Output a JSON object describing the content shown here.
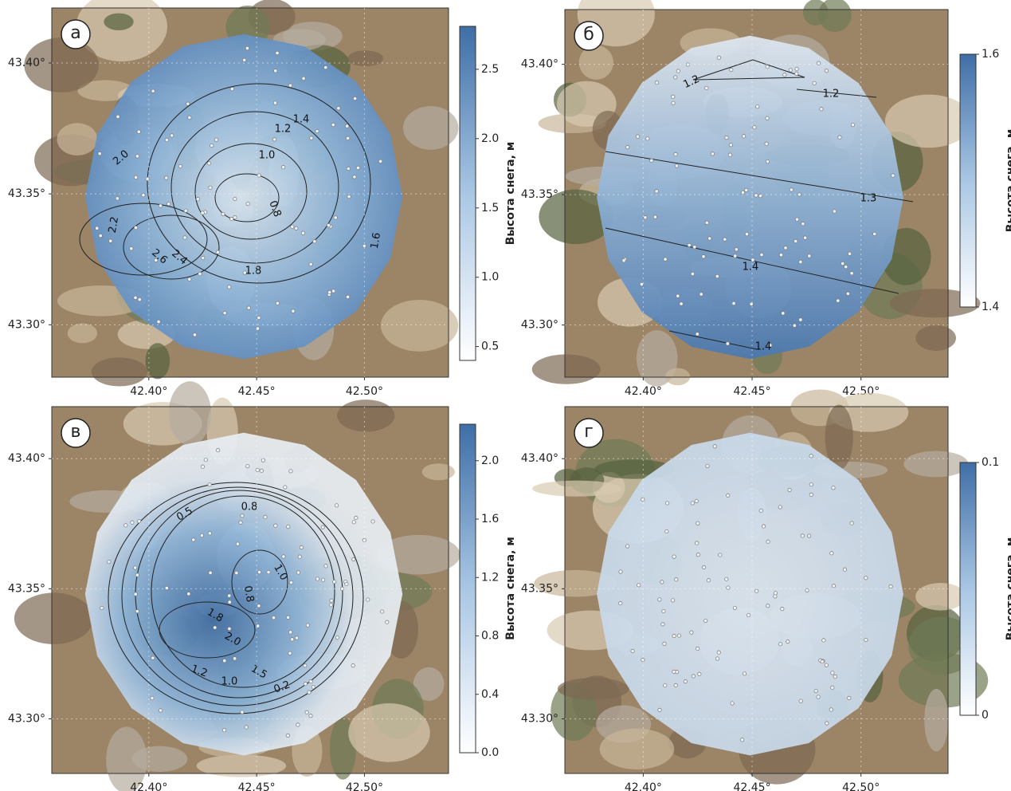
{
  "panels": [
    {
      "label": "а",
      "xlim": [
        42.355,
        42.539
      ],
      "ylim": [
        43.28,
        43.421
      ],
      "xticks": [
        {
          "value": 42.4,
          "label": "42.40°"
        },
        {
          "value": 42.45,
          "label": "42.45°"
        },
        {
          "value": 42.5,
          "label": "42.50°"
        }
      ],
      "yticks": [
        {
          "value": 43.3,
          "label": "43.30°"
        },
        {
          "value": 43.35,
          "label": "43.35°"
        },
        {
          "value": 43.4,
          "label": "43.40°"
        }
      ],
      "colorbar": {
        "label": "Высота снега, м",
        "lim": [
          0.4,
          2.81
        ],
        "ticks": [
          {
            "value": 0.5,
            "label": "0.5"
          },
          {
            "value": 1,
            "label": "1.0"
          },
          {
            "value": 1.5,
            "label": "1.5"
          },
          {
            "value": 2,
            "label": "2.0"
          },
          {
            "value": 2.5,
            "label": "2.5"
          }
        ]
      },
      "contour_labels": [
        "1.4",
        "1.2",
        "1.0",
        "0.8",
        "2.0",
        "2.2",
        "2.6",
        "2.4",
        "1.8",
        "1.6"
      ]
    },
    {
      "label": "б",
      "xlim": [
        42.364,
        42.54
      ],
      "ylim": [
        43.28,
        43.421
      ],
      "xticks": [
        {
          "value": 42.4,
          "label": "42.40°"
        },
        {
          "value": 42.45,
          "label": "42.45°"
        },
        {
          "value": 42.5,
          "label": "42.50°"
        }
      ],
      "yticks": [
        {
          "value": 43.3,
          "label": "43.30°"
        },
        {
          "value": 43.35,
          "label": "43.35°"
        },
        {
          "value": 43.4,
          "label": "43.40°"
        }
      ],
      "colorbar": {
        "label": "Высота снега, м",
        "lim": [
          1.4,
          1.6
        ],
        "ticks": [
          1.4,
          1.6
        ]
      },
      "contour_labels": [
        "1.2",
        "1.2",
        "1.3",
        "1.4",
        "1.4"
      ]
    },
    {
      "label": "в",
      "xlim": [
        42.355,
        42.539
      ],
      "ylim": [
        43.279,
        43.42
      ],
      "xticks": [
        {
          "value": 42.4,
          "label": "42.40°"
        },
        {
          "value": 42.45,
          "label": "42.45°"
        },
        {
          "value": 42.5,
          "label": "42.50°"
        }
      ],
      "yticks": [
        {
          "value": 43.3,
          "label": "43.30°"
        },
        {
          "value": 43.35,
          "label": "43.35°"
        },
        {
          "value": 43.4,
          "label": "43.40°"
        }
      ],
      "colorbar": {
        "label": "Высота снега, м",
        "lim": [
          0,
          2.25
        ],
        "ticks": [
          {
            "value": 0,
            "label": "0.0"
          },
          0.4,
          0.8,
          1.2,
          1.6,
          {
            "value": 2,
            "label": "2.0"
          }
        ]
      },
      "contour_labels": [
        "0.5",
        "0.8",
        "1.0",
        "0.8",
        "1.8",
        "2.0",
        "1.2",
        "1.0",
        "1.5",
        "0.2"
      ]
    },
    {
      "label": "г",
      "xlim": [
        42.364,
        42.54
      ],
      "ylim": [
        43.279,
        43.42
      ],
      "xticks": [
        {
          "value": 42.4,
          "label": "42.40°"
        },
        {
          "value": 42.45,
          "label": "42.45°"
        },
        {
          "value": 42.5,
          "label": "42.50°"
        }
      ],
      "yticks": [
        {
          "value": 43.3,
          "label": "43.30°"
        },
        {
          "value": 43.35,
          "label": "43.35°"
        },
        {
          "value": 43.4,
          "label": "43.40°"
        }
      ],
      "colorbar": {
        "label": "Высота снега, м",
        "lim": [
          0,
          0.1
        ],
        "ticks": [
          0,
          0.1
        ]
      },
      "contour_labels": []
    }
  ]
}
